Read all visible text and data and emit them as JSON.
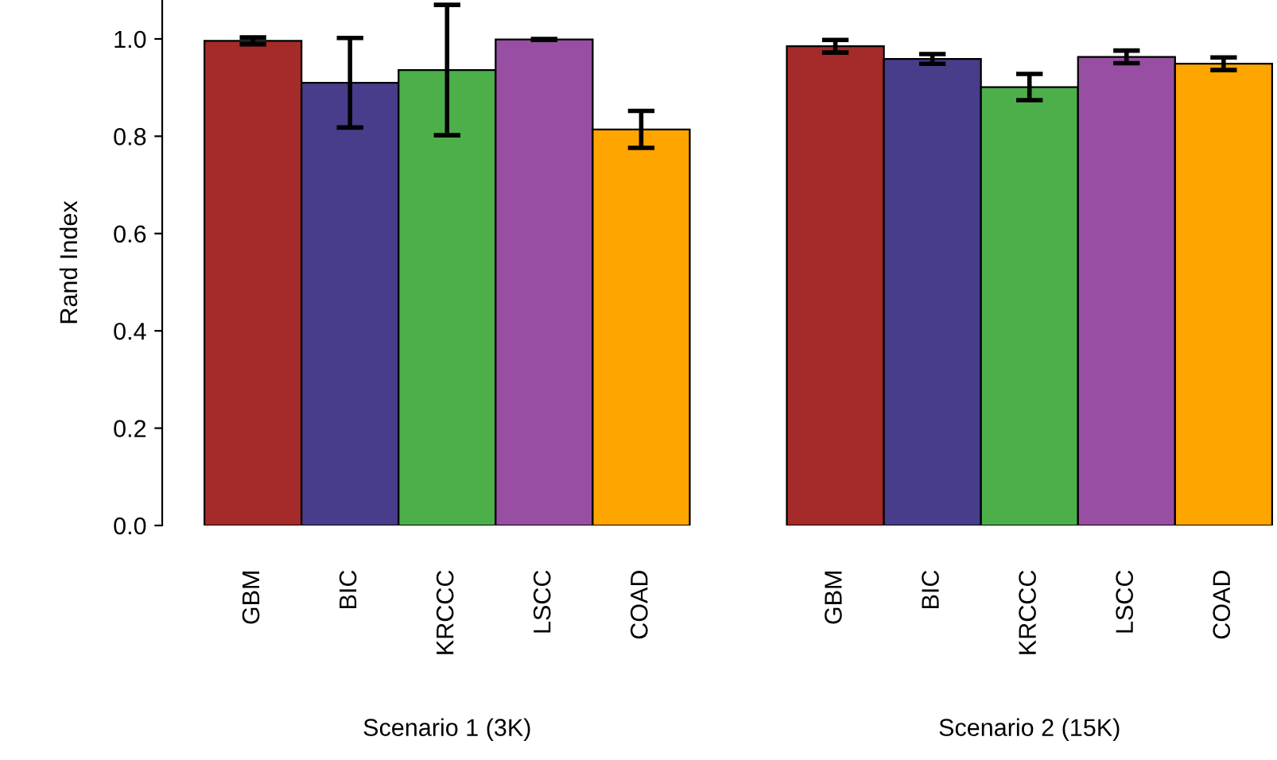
{
  "chart_data": {
    "type": "bar",
    "ylabel": "Rand Index",
    "categories": [
      "GBM",
      "BIC",
      "KRCCC",
      "LSCC",
      "COAD",
      null,
      "GBM",
      "BIC",
      "KRCCC",
      "LSCC",
      "COAD"
    ],
    "values": [
      0.996,
      0.91,
      0.936,
      0.999,
      0.814,
      null,
      0.985,
      0.959,
      0.901,
      0.963,
      0.949
    ],
    "errors": [
      0.007,
      0.092,
      0.134,
      0.001,
      0.038,
      null,
      0.013,
      0.01,
      0.027,
      0.013,
      0.013
    ],
    "colors": [
      "#a52a2a",
      "#483d8b",
      "#4daf4a",
      "#984ea3",
      "#ffa500",
      null,
      "#a52a2a",
      "#483d8b",
      "#4daf4a",
      "#984ea3",
      "#ffa500"
    ],
    "ylim": [
      0,
      1.08
    ],
    "yticks": [
      {
        "value": 0,
        "label": "0.0"
      },
      {
        "value": 0.2,
        "label": "0.2"
      },
      {
        "value": 0.4,
        "label": "0.4"
      },
      {
        "value": 0.6,
        "label": "0.6"
      },
      {
        "value": 0.8,
        "label": "0.8"
      },
      {
        "value": 1,
        "label": "1.0"
      }
    ],
    "annotations": [
      "Scenario 1 (3K)",
      "Scenario 2 (15K)"
    ],
    "grid": false,
    "legend": false
  }
}
